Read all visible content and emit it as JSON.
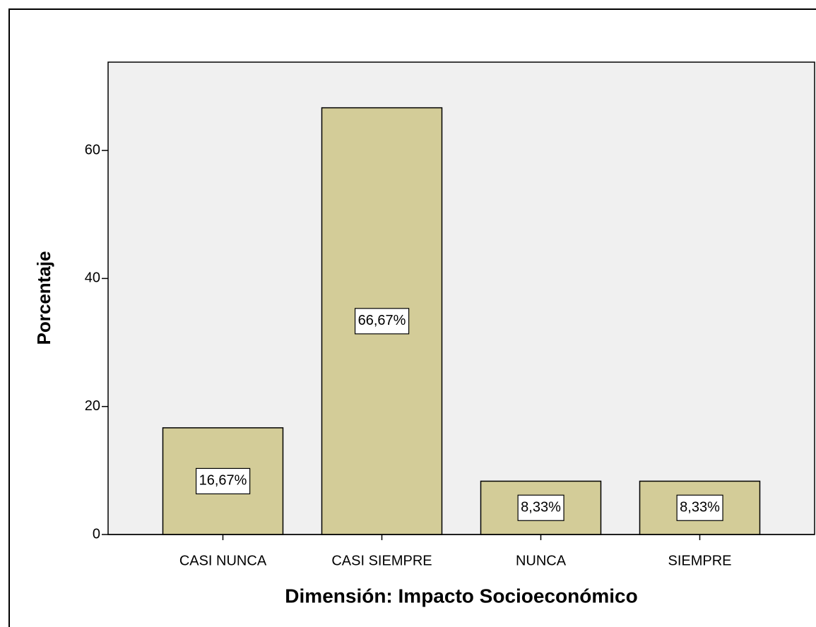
{
  "chart_data": {
    "type": "bar",
    "x_label": "Dimensión: Impacto Socioeconómico",
    "y_label": "Porcentaje",
    "categories": [
      "CASI NUNCA",
      "CASI SIEMPRE",
      "NUNCA",
      "SIEMPRE"
    ],
    "values": [
      16.67,
      66.67,
      8.33,
      8.33
    ],
    "value_labels": [
      "16,67%",
      "66,67%",
      "8,33%",
      "8,33%"
    ],
    "color": "#d3cc98",
    "ylim": [
      0,
      73.8
    ],
    "yticks": [
      0,
      20,
      40,
      60
    ]
  }
}
